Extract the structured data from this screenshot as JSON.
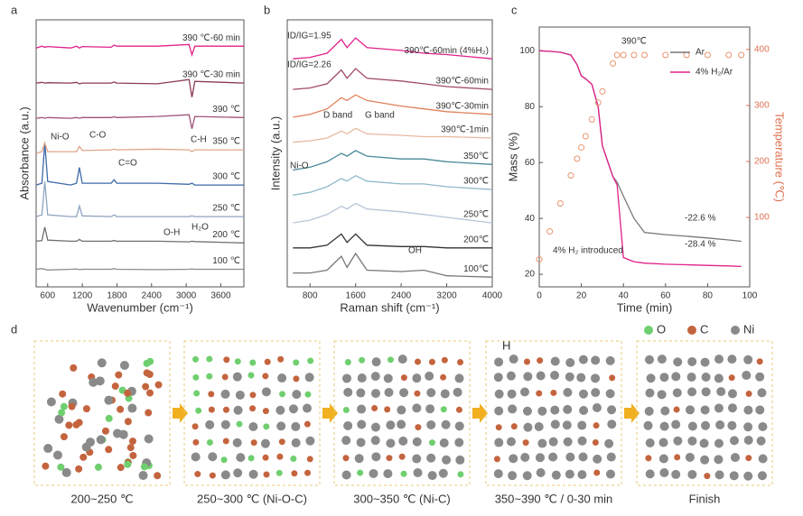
{
  "chart_data": [
    {
      "type": "line",
      "label": "a",
      "xlabel": "Wavenumber (cm⁻¹)",
      "ylabel": "Absorbance (a.u.)",
      "xlim": [
        400,
        4000
      ],
      "xticks": [
        600,
        1200,
        1800,
        2400,
        3000,
        3600
      ],
      "ylim": [
        0,
        7.6
      ],
      "x": [
        400,
        500,
        550,
        600,
        1000,
        1100,
        1150,
        1200,
        1700,
        1750,
        1800,
        2500,
        3050,
        3100,
        3150,
        4000
      ],
      "series": [
        {
          "name": "100 ℃",
          "color": "#8c8c8c",
          "values": [
            0.5,
            0.52,
            0.5,
            0.48,
            0.5,
            0.51,
            0.49,
            0.5,
            0.5,
            0.52,
            0.5,
            0.49,
            0.5,
            0.51,
            0.5,
            0.5
          ]
        },
        {
          "name": "200 ℃",
          "color": "#707070",
          "values": [
            1.3,
            1.32,
            1.7,
            1.33,
            1.3,
            1.3,
            1.35,
            1.3,
            1.3,
            1.32,
            1.3,
            1.3,
            1.28,
            1.3,
            1.29,
            1.25
          ]
        },
        {
          "name": "250 ℃",
          "color": "#8fa3c0",
          "values": [
            2.0,
            2.05,
            3.0,
            2.05,
            2.0,
            2.0,
            2.3,
            2.02,
            2.0,
            2.05,
            2.0,
            2.0,
            2.0,
            2.02,
            2.0,
            2.0
          ]
        },
        {
          "name": "300 ℃",
          "color": "#3e6aa8",
          "values": [
            2.9,
            2.95,
            4.1,
            3.0,
            2.9,
            2.95,
            3.4,
            2.95,
            2.95,
            3.05,
            2.95,
            2.95,
            2.92,
            2.95,
            2.9,
            2.9
          ]
        },
        {
          "name": "350 ℃",
          "color": "#e0a58a",
          "values": [
            3.8,
            3.85,
            4.1,
            3.85,
            3.85,
            3.85,
            4.0,
            3.88,
            3.9,
            3.92,
            3.9,
            3.92,
            3.9,
            3.85,
            3.9,
            3.9
          ]
        },
        {
          "name": "390 ℃",
          "color": "#a0507a",
          "values": [
            4.8,
            4.82,
            4.8,
            4.82,
            4.8,
            4.82,
            4.8,
            4.82,
            4.82,
            4.84,
            4.82,
            4.85,
            4.9,
            4.5,
            4.85,
            4.82
          ]
        },
        {
          "name": "390 ℃-30 min",
          "color": "#8a3a55",
          "values": [
            5.8,
            5.82,
            5.8,
            5.81,
            5.8,
            5.82,
            5.78,
            5.8,
            5.8,
            5.83,
            5.8,
            5.78,
            5.9,
            5.4,
            5.85,
            5.8
          ]
        },
        {
          "name": "390 ℃-60 min",
          "color": "#e0208a",
          "values": [
            6.8,
            6.85,
            6.82,
            6.84,
            6.8,
            6.85,
            6.8,
            6.84,
            6.82,
            6.88,
            6.85,
            6.85,
            6.9,
            6.6,
            6.85,
            6.85
          ]
        }
      ],
      "annotations": [
        "Ni-O",
        "C-O",
        "C=O",
        "C-H",
        "O-H",
        "H₂O"
      ]
    },
    {
      "type": "line",
      "label": "b",
      "xlabel": "Raman shift (cm⁻¹)",
      "ylabel": "Intensity (a.u.)",
      "xlim": [
        400,
        4000
      ],
      "xticks": [
        800,
        1600,
        2400,
        3200,
        4000
      ],
      "ylim": [
        0,
        9.6
      ],
      "x": [
        500,
        800,
        1100,
        1350,
        1450,
        1600,
        1800,
        2400,
        2800,
        3200,
        4000
      ],
      "series": [
        {
          "name": "100℃",
          "color": "#777777",
          "values": [
            0.5,
            0.5,
            0.6,
            1.1,
            0.7,
            1.2,
            0.6,
            0.55,
            0.6,
            0.4,
            0.35
          ]
        },
        {
          "name": "200℃",
          "color": "#333333",
          "values": [
            1.4,
            1.4,
            1.5,
            1.9,
            1.6,
            1.9,
            1.5,
            1.45,
            1.45,
            1.4,
            1.4
          ]
        },
        {
          "name": "250℃",
          "color": "#b7c6d8",
          "values": [
            2.3,
            2.4,
            2.6,
            2.9,
            2.8,
            3.0,
            2.8,
            2.7,
            2.6,
            2.5,
            2.3
          ]
        },
        {
          "name": "300℃",
          "color": "#8fb8c8",
          "values": [
            3.3,
            3.4,
            3.6,
            3.9,
            3.8,
            4.0,
            3.8,
            3.7,
            3.7,
            3.6,
            3.5
          ]
        },
        {
          "name": "350℃",
          "color": "#4a8a98",
          "values": [
            4.2,
            4.3,
            4.5,
            4.8,
            4.7,
            4.9,
            4.7,
            4.6,
            4.6,
            4.5,
            4.4
          ]
        },
        {
          "name": "390℃-1min",
          "color": "#e8b8a0",
          "values": [
            5.2,
            5.25,
            5.35,
            5.6,
            5.5,
            5.7,
            5.5,
            5.45,
            5.4,
            5.4,
            5.35
          ]
        },
        {
          "name": "390℃-30min",
          "color": "#e0805a",
          "values": [
            6.1,
            6.2,
            6.4,
            6.8,
            6.7,
            6.9,
            6.7,
            6.5,
            6.4,
            6.3,
            6.2
          ]
        },
        {
          "name": "390℃-60min",
          "color": "#a04a6a",
          "values": [
            7.1,
            7.15,
            7.3,
            7.8,
            7.5,
            7.85,
            7.5,
            7.4,
            7.3,
            7.2,
            7.1
          ]
        },
        {
          "name": "390℃-60min (4%H₂)",
          "color": "#e0208a",
          "values": [
            8.2,
            8.25,
            8.4,
            8.9,
            8.6,
            8.95,
            8.6,
            8.5,
            8.4,
            8.35,
            8.2
          ]
        }
      ],
      "annotations": [
        "ID/IG=1.95",
        "ID/IG=2.26",
        "D band",
        "G band",
        "Ni-O",
        "OH"
      ]
    },
    {
      "type": "line",
      "label": "c",
      "xlabel": "Time (min)",
      "ylabel": "Mass (%)",
      "y2label": "Temperature (℃)",
      "xlim": [
        0,
        100
      ],
      "xticks": [
        0,
        20,
        40,
        60,
        80,
        100
      ],
      "ylim": [
        15.5,
        108.5
      ],
      "yticks": [
        20,
        40,
        60,
        80,
        100
      ],
      "y2lim": [
        -24,
        440
      ],
      "y2ticks": [
        100,
        200,
        300,
        400
      ],
      "legend": "upper right",
      "x": [
        0,
        5,
        10,
        15,
        18,
        20,
        22,
        25,
        28,
        30,
        35,
        37,
        40,
        45,
        50,
        60,
        70,
        80,
        90,
        96
      ],
      "series": [
        {
          "name": "Ar",
          "color": "#777777",
          "values": [
            100,
            99.8,
            99.5,
            98.5,
            95,
            91,
            90,
            88,
            80,
            66,
            55,
            53,
            48,
            40,
            35,
            34.2,
            33.6,
            33,
            32.3,
            31.8
          ]
        },
        {
          "name": "4% H₂/Ar",
          "color": "#e0208a",
          "values": [
            100,
            99.8,
            99.5,
            98.5,
            95,
            91,
            90,
            88,
            80,
            66,
            55,
            52,
            26,
            24.5,
            24,
            23.6,
            23.4,
            23.2,
            23,
            22.8
          ]
        },
        {
          "name": "Temperature",
          "color": "#e8956f",
          "axis": "y2",
          "marker": "circle",
          "values": [
            25,
            75,
            125,
            175,
            205,
            225,
            245,
            275,
            305,
            325,
            375,
            390,
            390,
            390,
            390,
            390,
            390,
            390,
            390,
            390
          ]
        }
      ],
      "annotations": [
        "390℃",
        "-22.6 %",
        "-28.4 %",
        "4% H₂ introduced"
      ]
    }
  ],
  "diagram": {
    "label": "d",
    "stages": [
      "200~250 ℃",
      "250~300 ℃ (Ni-O-C)",
      "300~350 ℃ (Ni-C)",
      "350~390 ℃ / 0-30 min",
      "Finish"
    ],
    "legend": [
      "O",
      "C",
      "Ni"
    ],
    "h_label": "H"
  }
}
